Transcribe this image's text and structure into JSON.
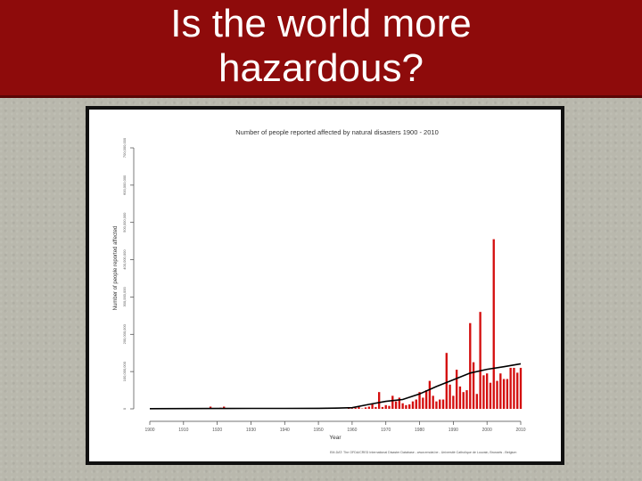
{
  "slide": {
    "title": "Is the world more\nhazardous?"
  },
  "colors": {
    "title_bg": "#8e0b0b",
    "bar": "#d40f0f",
    "trend_line": "#000000"
  },
  "chart_data": {
    "type": "bar",
    "title": "Number of people reported affected by natural disasters 1900 - 2010",
    "xlabel": "Year",
    "ylabel": "Number of people reported affected",
    "source_note": "EM-DAT: The OFDA/CRED International Disaster Database - www.emdat.be - Université Catholique de Louvain, Brussels - Belgium",
    "xlim": [
      1900,
      2010
    ],
    "ylim": [
      0,
      700000000
    ],
    "x_ticks": [
      "1900",
      "1910",
      "1920",
      "1930",
      "1940",
      "1950",
      "1960",
      "1970",
      "1980",
      "1990",
      "2000",
      "2010"
    ],
    "y_ticks": [
      "0",
      "100,000,000",
      "200,000,000",
      "300,000,000",
      "400,000,000",
      "500,000,000",
      "600,000,000",
      "700,000,000"
    ],
    "grid": false,
    "legend": "none",
    "series": [
      {
        "type": "bar",
        "x": [
          1918,
          1921,
          1922,
          1931,
          1949,
          1953,
          1959,
          1960,
          1961,
          1962,
          1963,
          1964,
          1965,
          1966,
          1967,
          1968,
          1969,
          1970,
          1971,
          1972,
          1973,
          1974,
          1975,
          1976,
          1977,
          1978,
          1979,
          1980,
          1981,
          1982,
          1983,
          1984,
          1985,
          1986,
          1987,
          1988,
          1989,
          1990,
          1991,
          1992,
          1993,
          1994,
          1995,
          1996,
          1997,
          1998,
          1999,
          2000,
          2001,
          2002,
          2003,
          2004,
          2005,
          2006,
          2007,
          2008,
          2009,
          2010
        ],
        "values": [
          6000000,
          3000000,
          6000000,
          2000000,
          1000000,
          3000000,
          2000000,
          1000000,
          3000000,
          5000000,
          1000000,
          4000000,
          6000000,
          12000000,
          5000000,
          45000000,
          5000000,
          10000000,
          8000000,
          35000000,
          20000000,
          30000000,
          15000000,
          10000000,
          12000000,
          20000000,
          25000000,
          45000000,
          30000000,
          50000000,
          75000000,
          35000000,
          20000000,
          25000000,
          25000000,
          150000000,
          65000000,
          35000000,
          105000000,
          60000000,
          45000000,
          50000000,
          230000000,
          125000000,
          40000000,
          260000000,
          90000000,
          95000000,
          70000000,
          455000000,
          75000000,
          95000000,
          80000000,
          80000000,
          110000000,
          110000000,
          97000000,
          110000000
        ]
      },
      {
        "type": "line",
        "x": [
          1900,
          1910,
          1920,
          1930,
          1940,
          1950,
          1955,
          1960,
          1965,
          1970,
          1975,
          1980,
          1985,
          1990,
          1995,
          2000,
          2005,
          2010
        ],
        "values": [
          500000,
          700000,
          1000000,
          1200000,
          1300000,
          1500000,
          2000000,
          3000000,
          12000000,
          20000000,
          25000000,
          40000000,
          60000000,
          78000000,
          96000000,
          106000000,
          113000000,
          121000000
        ]
      }
    ]
  }
}
